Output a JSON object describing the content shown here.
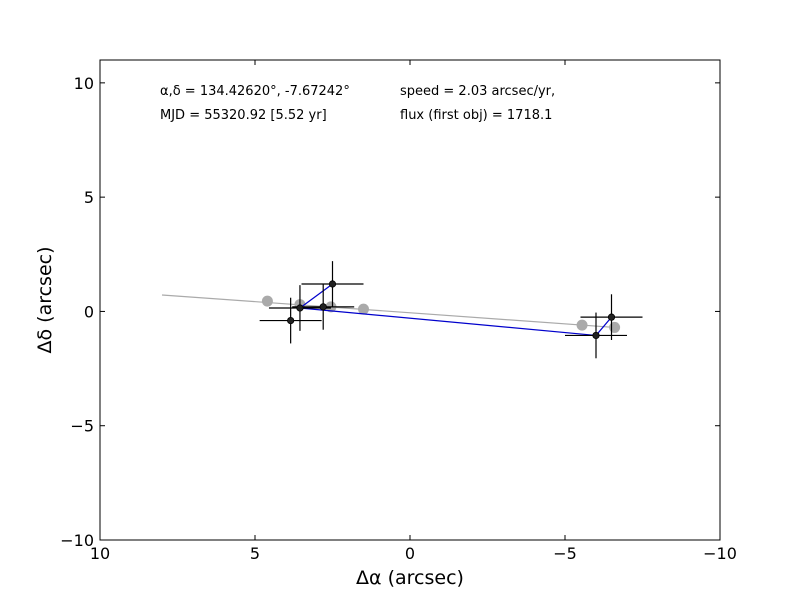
{
  "chart_data": {
    "type": "scatter",
    "xlabel": "Δα (arcsec)",
    "ylabel": "Δδ (arcsec)",
    "xlim": [
      10,
      -10
    ],
    "ylim": [
      -10,
      11
    ],
    "x_inverted": true,
    "xticks": [
      10,
      5,
      0,
      -5,
      -10
    ],
    "xtick_labels": [
      "10",
      "5",
      "0",
      "−5",
      "−10"
    ],
    "yticks": [
      10,
      5,
      0,
      -5,
      -10
    ],
    "ytick_labels": [
      "10",
      "5",
      "0",
      "−5",
      "−10"
    ],
    "grid": false,
    "annotations": {
      "coords": "α,δ = 134.42620°, -7.67242°",
      "mjd": "MJD = 55320.92 [5.52 yr]",
      "speed": "speed = 2.03 arcsec/yr,",
      "flux": "flux (first obj) = 1718.1"
    },
    "fit_line": {
      "x": [
        8.0,
        -6.6
      ],
      "y": [
        0.72,
        -0.7
      ],
      "color": "#aaaaaa"
    },
    "predicted_points": {
      "color": "#aaaaaa",
      "x": [
        4.6,
        3.55,
        2.55,
        1.5,
        -5.55,
        -6.6
      ],
      "y": [
        0.45,
        0.3,
        0.2,
        0.1,
        -0.6,
        -0.7
      ]
    },
    "observations": {
      "color": "#222222",
      "x": [
        3.85,
        3.55,
        2.8,
        2.5,
        -6.0,
        -6.5
      ],
      "y": [
        -0.4,
        0.15,
        0.2,
        1.2,
        -1.05,
        -0.25
      ],
      "xerr": [
        1.0,
        1.0,
        1.0,
        1.0,
        1.0,
        1.0
      ],
      "yerr": [
        1.0,
        1.0,
        1.0,
        1.0,
        1.0,
        1.0
      ]
    },
    "connections": {
      "color": "#0000cc",
      "segments": [
        [
          1,
          3
        ],
        [
          1,
          4
        ],
        [
          4,
          5
        ]
      ]
    }
  }
}
